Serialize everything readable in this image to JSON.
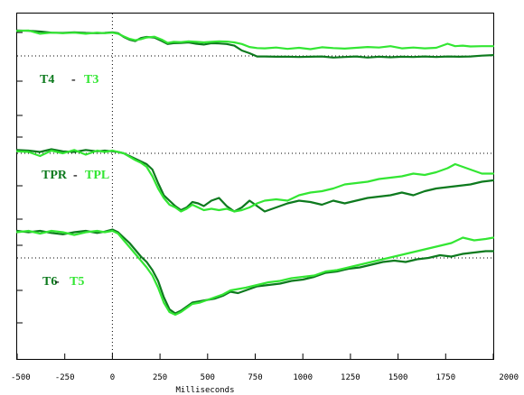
{
  "chart_data": {
    "type": "line",
    "xlabel": "Milliseconds",
    "xlim": [
      -500,
      2000
    ],
    "xticks": [
      -500,
      -250,
      0,
      250,
      500,
      750,
      1000,
      1250,
      1500,
      1750,
      2000
    ],
    "xtick_labels": [
      "-500",
      "-250",
      "0",
      "250",
      "500",
      "750",
      "1000",
      "1250",
      "1500",
      "1750",
      "2000"
    ],
    "colors": {
      "dark": "#0d7a1e",
      "light": "#33e633",
      "dash": "#000000",
      "frame": "#000000"
    },
    "panels": [
      {
        "label_dark": "T4",
        "separator": "-",
        "label_light": "T3",
        "series": [
          {
            "name": "T4",
            "color": "#0d7a1e",
            "x": [
              -500,
              -440,
              -380,
              -320,
              -260,
              -200,
              -140,
              -80,
              -40,
              0,
              30,
              60,
              90,
              120,
              150,
              180,
              220,
              260,
              290,
              320,
              360,
              400,
              440,
              480,
              520,
              560,
              600,
              640,
              680,
              720,
              760,
              800,
              860,
              920,
              980,
              1040,
              1100,
              1160,
              1220,
              1280,
              1340,
              1400,
              1460,
              1520,
              1580,
              1640,
              1700,
              1760,
              1820,
              1880,
              1940,
              2000
            ],
            "y": [
              0.94,
              0.93,
              0.9,
              0.86,
              0.85,
              0.87,
              0.85,
              0.84,
              0.85,
              0.87,
              0.84,
              0.7,
              0.6,
              0.55,
              0.66,
              0.7,
              0.68,
              0.55,
              0.44,
              0.47,
              0.48,
              0.5,
              0.45,
              0.42,
              0.47,
              0.46,
              0.44,
              0.38,
              0.2,
              0.1,
              -0.02,
              -0.02,
              -0.03,
              -0.03,
              -0.04,
              -0.03,
              -0.02,
              -0.06,
              -0.04,
              -0.02,
              -0.06,
              -0.03,
              -0.05,
              -0.03,
              -0.04,
              -0.02,
              -0.04,
              -0.02,
              -0.03,
              -0.02,
              0.01,
              0.03
            ]
          },
          {
            "name": "T3",
            "color": "#33e633",
            "x": [
              -500,
              -440,
              -380,
              -320,
              -260,
              -200,
              -140,
              -80,
              -40,
              0,
              30,
              60,
              90,
              120,
              150,
              180,
              220,
              260,
              290,
              320,
              360,
              400,
              440,
              480,
              520,
              560,
              600,
              640,
              680,
              720,
              760,
              800,
              860,
              920,
              980,
              1040,
              1100,
              1160,
              1220,
              1280,
              1340,
              1400,
              1460,
              1520,
              1580,
              1640,
              1700,
              1760,
              1800,
              1840,
              1880,
              1940,
              2000
            ],
            "y": [
              0.92,
              0.94,
              0.82,
              0.86,
              0.84,
              0.86,
              0.82,
              0.86,
              0.84,
              0.86,
              0.82,
              0.72,
              0.63,
              0.58,
              0.62,
              0.68,
              0.71,
              0.6,
              0.48,
              0.52,
              0.51,
              0.54,
              0.52,
              0.5,
              0.52,
              0.54,
              0.53,
              0.5,
              0.44,
              0.33,
              0.29,
              0.28,
              0.31,
              0.26,
              0.3,
              0.25,
              0.32,
              0.29,
              0.27,
              0.3,
              0.33,
              0.31,
              0.36,
              0.28,
              0.31,
              0.28,
              0.3,
              0.45,
              0.36,
              0.38,
              0.35,
              0.36,
              0.36
            ]
          }
        ]
      },
      {
        "label_dark": "TPR",
        "separator": "-",
        "label_light": "TPL",
        "series": [
          {
            "name": "TPR",
            "color": "#0d7a1e",
            "x": [
              -500,
              -440,
              -380,
              -320,
              -260,
              -200,
              -140,
              -80,
              -40,
              0,
              30,
              60,
              90,
              120,
              150,
              180,
              210,
              240,
              270,
              300,
              330,
              360,
              390,
              420,
              450,
              480,
              520,
              560,
              600,
              640,
              680,
              720,
              760,
              800,
              860,
              920,
              980,
              1040,
              1100,
              1160,
              1220,
              1280,
              1340,
              1400,
              1460,
              1520,
              1580,
              1640,
              1700,
              1760,
              1820,
              1880,
              1940,
              2000
            ],
            "y": [
              0.05,
              0.04,
              0.02,
              0.06,
              0.03,
              0.02,
              0.05,
              0.03,
              0.04,
              0.03,
              0.02,
              0.0,
              -0.04,
              -0.08,
              -0.12,
              -0.16,
              -0.24,
              -0.44,
              -0.62,
              -0.7,
              -0.78,
              -0.84,
              -0.8,
              -0.72,
              -0.74,
              -0.78,
              -0.7,
              -0.66,
              -0.78,
              -0.86,
              -0.8,
              -0.7,
              -0.78,
              -0.86,
              -0.8,
              -0.74,
              -0.7,
              -0.72,
              -0.76,
              -0.7,
              -0.74,
              -0.7,
              -0.66,
              -0.64,
              -0.62,
              -0.58,
              -0.62,
              -0.56,
              -0.52,
              -0.5,
              -0.48,
              -0.46,
              -0.42,
              -0.4
            ]
          },
          {
            "name": "TPL",
            "color": "#33e633",
            "x": [
              -500,
              -440,
              -380,
              -320,
              -260,
              -200,
              -140,
              -80,
              -40,
              0,
              30,
              60,
              90,
              120,
              150,
              180,
              210,
              240,
              270,
              300,
              330,
              360,
              390,
              420,
              450,
              480,
              520,
              560,
              600,
              640,
              680,
              720,
              760,
              800,
              860,
              920,
              980,
              1040,
              1100,
              1160,
              1220,
              1280,
              1340,
              1400,
              1460,
              1520,
              1580,
              1640,
              1700,
              1760,
              1800,
              1840,
              1880,
              1940,
              2000
            ],
            "y": [
              0.03,
              0.02,
              -0.04,
              0.04,
              0.0,
              0.05,
              -0.02,
              0.04,
              0.02,
              0.04,
              0.02,
              0.0,
              -0.05,
              -0.1,
              -0.14,
              -0.2,
              -0.34,
              -0.52,
              -0.66,
              -0.76,
              -0.8,
              -0.86,
              -0.82,
              -0.76,
              -0.8,
              -0.84,
              -0.82,
              -0.84,
              -0.82,
              -0.86,
              -0.84,
              -0.8,
              -0.74,
              -0.7,
              -0.68,
              -0.7,
              -0.62,
              -0.58,
              -0.56,
              -0.52,
              -0.46,
              -0.44,
              -0.42,
              -0.38,
              -0.36,
              -0.34,
              -0.3,
              -0.32,
              -0.28,
              -0.22,
              -0.16,
              -0.2,
              -0.24,
              -0.3,
              -0.3
            ]
          }
        ]
      },
      {
        "label_dark": "T6",
        "separator": "-",
        "label_light": "T5",
        "series": [
          {
            "name": "T6",
            "color": "#0d7a1e",
            "x": [
              -500,
              -440,
              -380,
              -320,
              -260,
              -200,
              -140,
              -80,
              -40,
              0,
              30,
              60,
              90,
              120,
              150,
              180,
              210,
              240,
              270,
              300,
              330,
              360,
              390,
              420,
              460,
              500,
              540,
              580,
              620,
              660,
              700,
              760,
              820,
              880,
              940,
              1000,
              1060,
              1120,
              1180,
              1240,
              1300,
              1360,
              1420,
              1480,
              1540,
              1600,
              1660,
              1720,
              1780,
              1840,
              1900,
              1960,
              2000
            ],
            "y": [
              0.4,
              0.38,
              0.4,
              0.37,
              0.35,
              0.38,
              0.4,
              0.37,
              0.39,
              0.42,
              0.38,
              0.3,
              0.22,
              0.12,
              0.02,
              -0.06,
              -0.18,
              -0.34,
              -0.58,
              -0.76,
              -0.82,
              -0.78,
              -0.72,
              -0.66,
              -0.64,
              -0.62,
              -0.6,
              -0.56,
              -0.5,
              -0.52,
              -0.48,
              -0.42,
              -0.4,
              -0.38,
              -0.34,
              -0.32,
              -0.28,
              -0.22,
              -0.2,
              -0.16,
              -0.14,
              -0.1,
              -0.06,
              -0.04,
              -0.06,
              -0.02,
              0.0,
              0.04,
              0.02,
              0.06,
              0.08,
              0.1,
              0.1
            ]
          },
          {
            "name": "T5",
            "color": "#33e633",
            "x": [
              -500,
              -440,
              -380,
              -320,
              -260,
              -200,
              -140,
              -80,
              -40,
              0,
              30,
              60,
              90,
              120,
              150,
              180,
              210,
              240,
              270,
              300,
              330,
              360,
              390,
              420,
              460,
              500,
              540,
              580,
              620,
              660,
              700,
              760,
              820,
              880,
              940,
              1000,
              1060,
              1120,
              1180,
              1240,
              1300,
              1360,
              1420,
              1480,
              1540,
              1600,
              1660,
              1720,
              1780,
              1840,
              1900,
              1960,
              2000
            ],
            "y": [
              0.38,
              0.4,
              0.36,
              0.4,
              0.38,
              0.34,
              0.38,
              0.4,
              0.38,
              0.4,
              0.36,
              0.26,
              0.16,
              0.06,
              -0.04,
              -0.14,
              -0.26,
              -0.44,
              -0.66,
              -0.8,
              -0.84,
              -0.8,
              -0.74,
              -0.68,
              -0.66,
              -0.62,
              -0.58,
              -0.54,
              -0.48,
              -0.46,
              -0.44,
              -0.4,
              -0.36,
              -0.34,
              -0.3,
              -0.28,
              -0.26,
              -0.2,
              -0.18,
              -0.14,
              -0.1,
              -0.06,
              -0.02,
              0.02,
              0.06,
              0.1,
              0.14,
              0.18,
              0.22,
              0.3,
              0.26,
              0.28,
              0.3
            ]
          }
        ]
      }
    ]
  }
}
